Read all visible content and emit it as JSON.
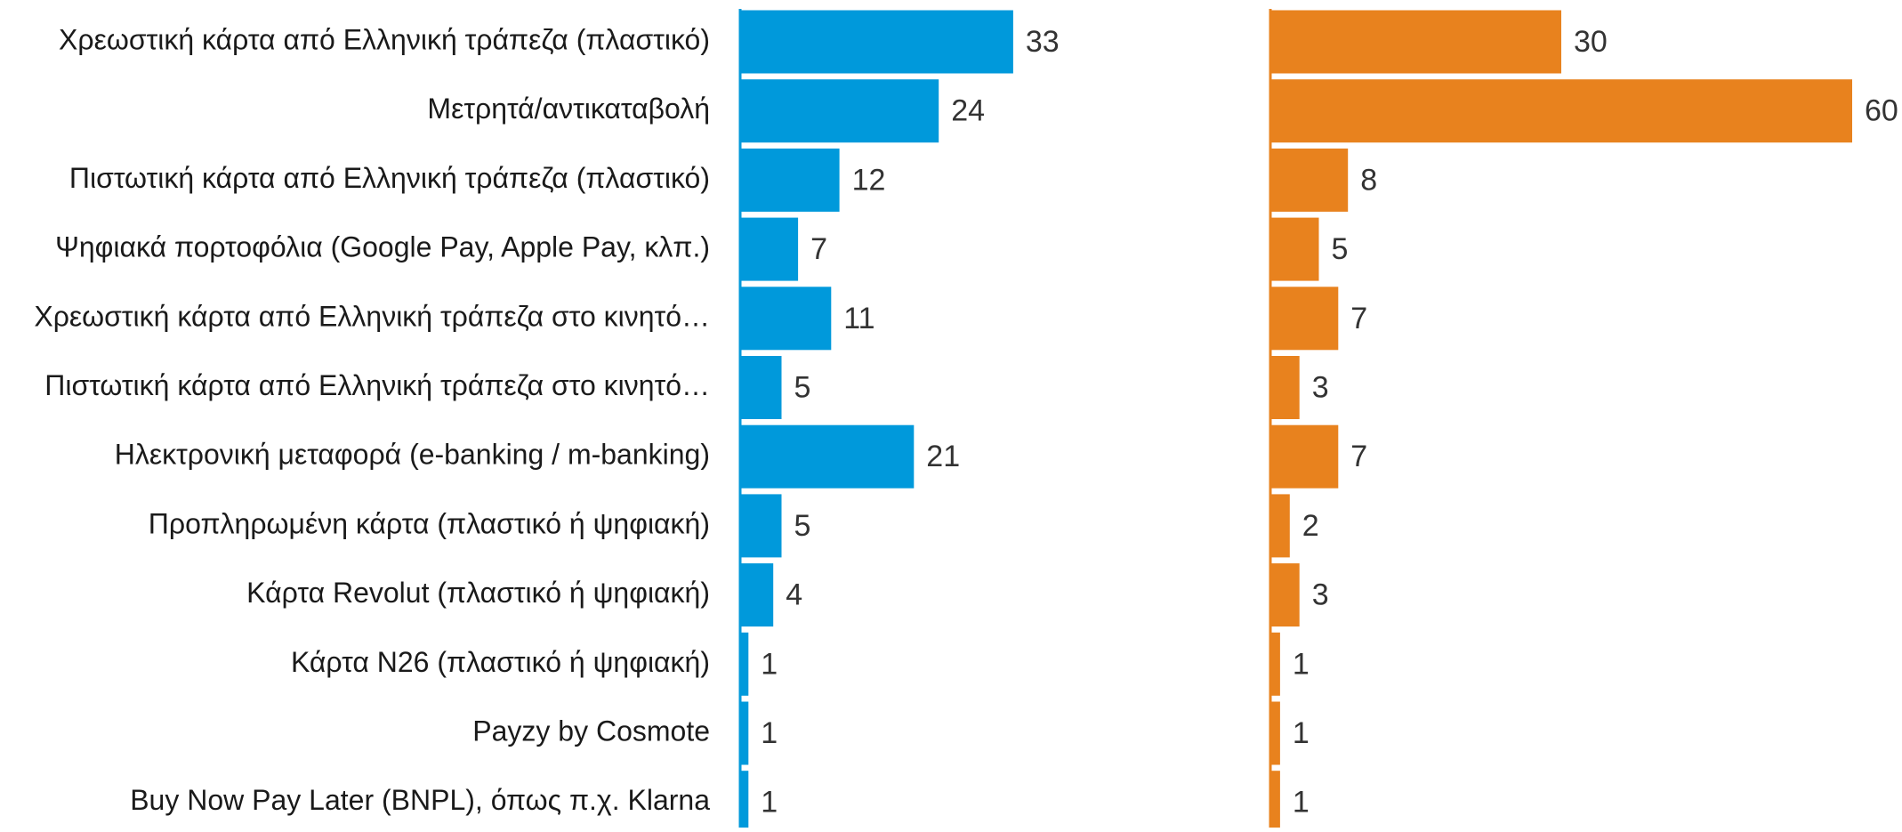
{
  "chart_data": [
    {
      "type": "bar",
      "categories": [
        "Χρεωστική κάρτα από Ελληνική τράπεζα (πλαστικό)",
        "Μετρητά/αντικαταβολή",
        "Πιστωτική κάρτα από Ελληνική τράπεζα (πλαστικό)",
        "Ψηφιακά πορτοφόλια (Google Pay, Apple Pay, κλπ.)",
        "Χρεωστική κάρτα από Ελληνική τράπεζα στο κινητό…",
        "Πιστωτική κάρτα από Ελληνική τράπεζα στο κινητό…",
        "Ηλεκτρονική μεταφορά (e-banking / m-banking)",
        "Προπληρωμένη κάρτα (πλαστικό ή ψηφιακή)",
        "Κάρτα Revolut (πλαστικό ή ψηφιακή)",
        "Κάρτα N26 (πλαστικό ή ψηφιακή)",
        "Payzy by Cosmote",
        "Buy Now Pay Later (BNPL), όπως π.χ. Klarna"
      ],
      "values": [
        33,
        24,
        12,
        7,
        11,
        5,
        21,
        5,
        4,
        1,
        1,
        1
      ],
      "color": "#0099db",
      "xlim": [
        0,
        60
      ]
    },
    {
      "type": "bar",
      "values": [
        30,
        60,
        8,
        5,
        7,
        3,
        7,
        2,
        3,
        1,
        1,
        1
      ],
      "color": "#e8821e",
      "xlim": [
        0,
        60
      ]
    }
  ]
}
